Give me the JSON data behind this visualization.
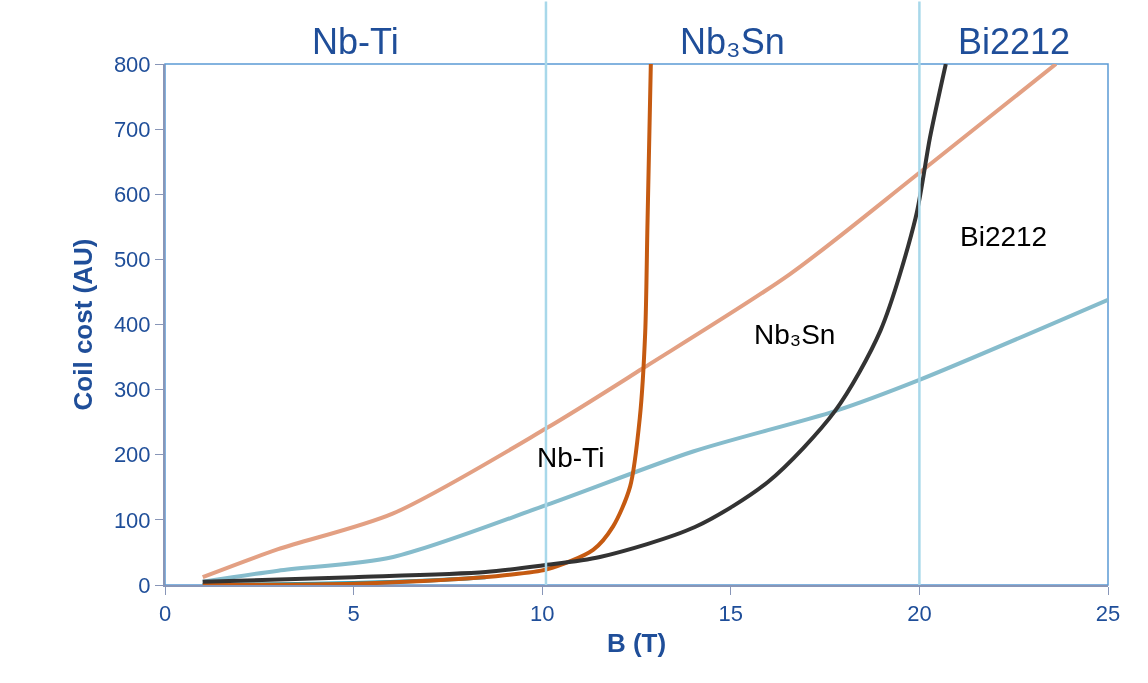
{
  "chart_data": {
    "type": "line",
    "xlabel": "B (T)",
    "ylabel": "Coil cost (AU)",
    "xlim": [
      0,
      25
    ],
    "xticks": [
      0,
      5,
      10,
      15,
      20,
      25
    ],
    "ylim": [
      0,
      800
    ],
    "yticks": [
      0,
      100,
      200,
      300,
      400,
      500,
      600,
      700,
      800
    ],
    "grid": false,
    "marker": "none",
    "line_style": "solid",
    "series": [
      {
        "color": "#e3a083",
        "x": [
          1,
          3,
          6.05,
          10.12,
          12.65,
          16.56,
          20.0,
          23.62
        ],
        "values": [
          12,
          55,
          110,
          241,
          332,
          477,
          633,
          800
        ]
      },
      {
        "color": "#86bccc",
        "x": [
          1,
          3,
          6.05,
          10.12,
          14,
          17.76,
          20.0,
          25
        ],
        "values": [
          5,
          22,
          43,
          123,
          205,
          267,
          315,
          438
        ]
      },
      {
        "color": "#1a9cc0",
        "x": [
          1,
          3,
          5,
          7,
          8.5
        ],
        "values": [
          0,
          1,
          3,
          7,
          12
        ]
      },
      {
        "color": "#c55a11",
        "x": [
          1,
          5,
          8,
          9,
          10.12,
          11.35,
          11.88,
          12.33,
          12.59,
          12.73,
          12.79,
          12.88
        ],
        "values": [
          0,
          2,
          10,
          15,
          24,
          54,
          90,
          151,
          258,
          387,
          552,
          800
        ]
      },
      {
        "color": "#333333",
        "x": [
          1,
          5,
          8.5,
          10,
          11.53,
          14.05,
          16.0,
          17.76,
          18.97,
          19.9,
          20.28,
          20.7
        ],
        "values": [
          5,
          12,
          20,
          30,
          43,
          89,
          159,
          267,
          391,
          564,
          687,
          800
        ]
      }
    ],
    "ref_lines": [
      {
        "axis": "x",
        "value": 10.1,
        "color": "#a8d8ea"
      },
      {
        "axis": "x",
        "value": 20,
        "color": "#a8d8ea"
      }
    ],
    "annotations": [
      "Nb-Ti",
      "Nb₃Sn",
      "Bi2212",
      "Nb-Ti",
      "Nb₃Sn",
      "Bi2212"
    ]
  }
}
